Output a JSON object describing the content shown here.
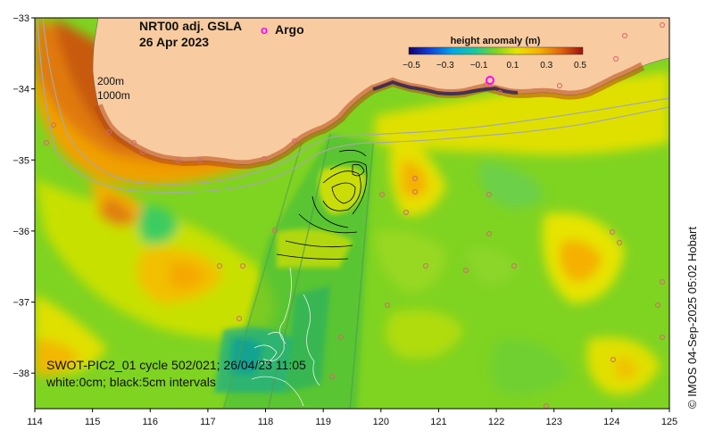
{
  "map": {
    "title_line1": "NRT00 adj. GSLA",
    "title_line2": "26 Apr 2023",
    "argo_label": "Argo",
    "argo_marker": "o",
    "bathy_200": "200m",
    "bathy_1000": "1000m",
    "pass_line1": "SWOT-PIC2_01 cycle 502/021; 26/04/23 11:05",
    "pass_line2": "white:0cm; black:5cm intervals",
    "copyright": "© IMOS 04-Sep-2025 05:02 Hobart",
    "colors": {
      "land": "#f8cba0",
      "ocean_base": "#7fd321",
      "argo": "#ff00ff",
      "bathy": "#a8a8a8"
    }
  },
  "colorbar": {
    "title": "height anomaly (m)",
    "ticks": [
      "−0.5",
      "−0.3",
      "−0.1",
      "0.1",
      "0.3",
      "0.5"
    ],
    "range": [
      -0.5,
      0.5
    ]
  },
  "axes": {
    "x_ticks": [
      "114",
      "115",
      "116",
      "117",
      "118",
      "119",
      "120",
      "121",
      "122",
      "123",
      "124",
      "125"
    ],
    "y_ticks": [
      "−33",
      "−34",
      "−35",
      "−36",
      "−37",
      "−38"
    ],
    "lon_range": [
      114,
      125
    ],
    "lat_range": [
      -33,
      -38.5
    ]
  }
}
